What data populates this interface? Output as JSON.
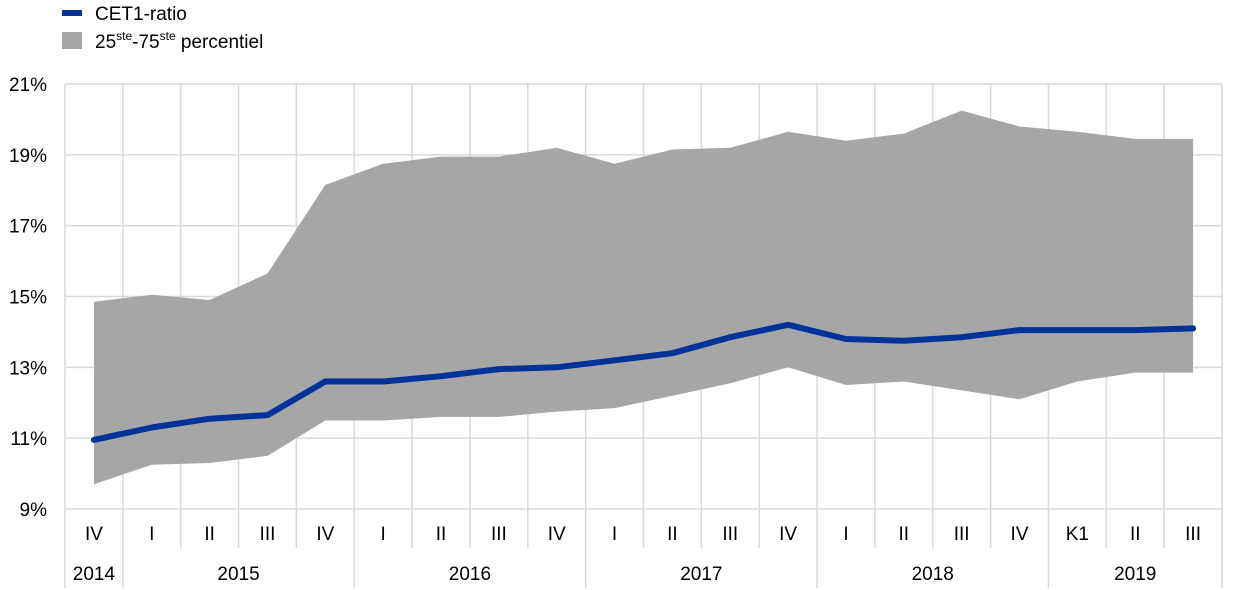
{
  "chart_data": {
    "type": "area",
    "legend": {
      "line_label": "CET1-ratio",
      "band_label_parts": [
        "25",
        "ste",
        "-75",
        "ste",
        " percentiel"
      ]
    },
    "colors": {
      "line": "#003299",
      "band": "#a6a6a6",
      "grid": "#d9d9d9"
    },
    "y_ticks": [
      "9%",
      "11%",
      "13%",
      "15%",
      "17%",
      "19%",
      "21%"
    ],
    "ylim": [
      9,
      21
    ],
    "quarters": [
      "IV",
      "I",
      "II",
      "III",
      "IV",
      "I",
      "II",
      "III",
      "IV",
      "I",
      "II",
      "III",
      "IV",
      "I",
      "II",
      "III",
      "IV",
      "K1",
      "II",
      "III"
    ],
    "years": [
      {
        "label": "2014",
        "count": 1
      },
      {
        "label": "2015",
        "count": 4
      },
      {
        "label": "2016",
        "count": 4
      },
      {
        "label": "2017",
        "count": 4
      },
      {
        "label": "2018",
        "count": 4
      },
      {
        "label": "2019",
        "count": 3
      }
    ],
    "series": [
      {
        "name": "CET1-ratio",
        "values": [
          10.95,
          11.3,
          11.55,
          11.65,
          12.6,
          12.6,
          12.75,
          12.95,
          13.0,
          13.2,
          13.4,
          13.85,
          14.2,
          13.8,
          13.75,
          13.85,
          14.05,
          14.05,
          14.05,
          14.1
        ]
      },
      {
        "name": "25ste percentiel",
        "values": [
          9.7,
          10.25,
          10.3,
          10.5,
          11.5,
          11.5,
          11.6,
          11.6,
          11.75,
          11.85,
          12.2,
          12.55,
          13.0,
          12.5,
          12.6,
          12.35,
          12.1,
          12.6,
          12.85,
          12.85
        ]
      },
      {
        "name": "75ste percentiel",
        "values": [
          14.85,
          15.05,
          14.9,
          15.65,
          18.15,
          18.75,
          18.95,
          18.95,
          19.2,
          18.75,
          19.15,
          19.2,
          19.65,
          19.4,
          19.6,
          20.25,
          19.8,
          19.65,
          19.45,
          19.45
        ]
      }
    ]
  }
}
